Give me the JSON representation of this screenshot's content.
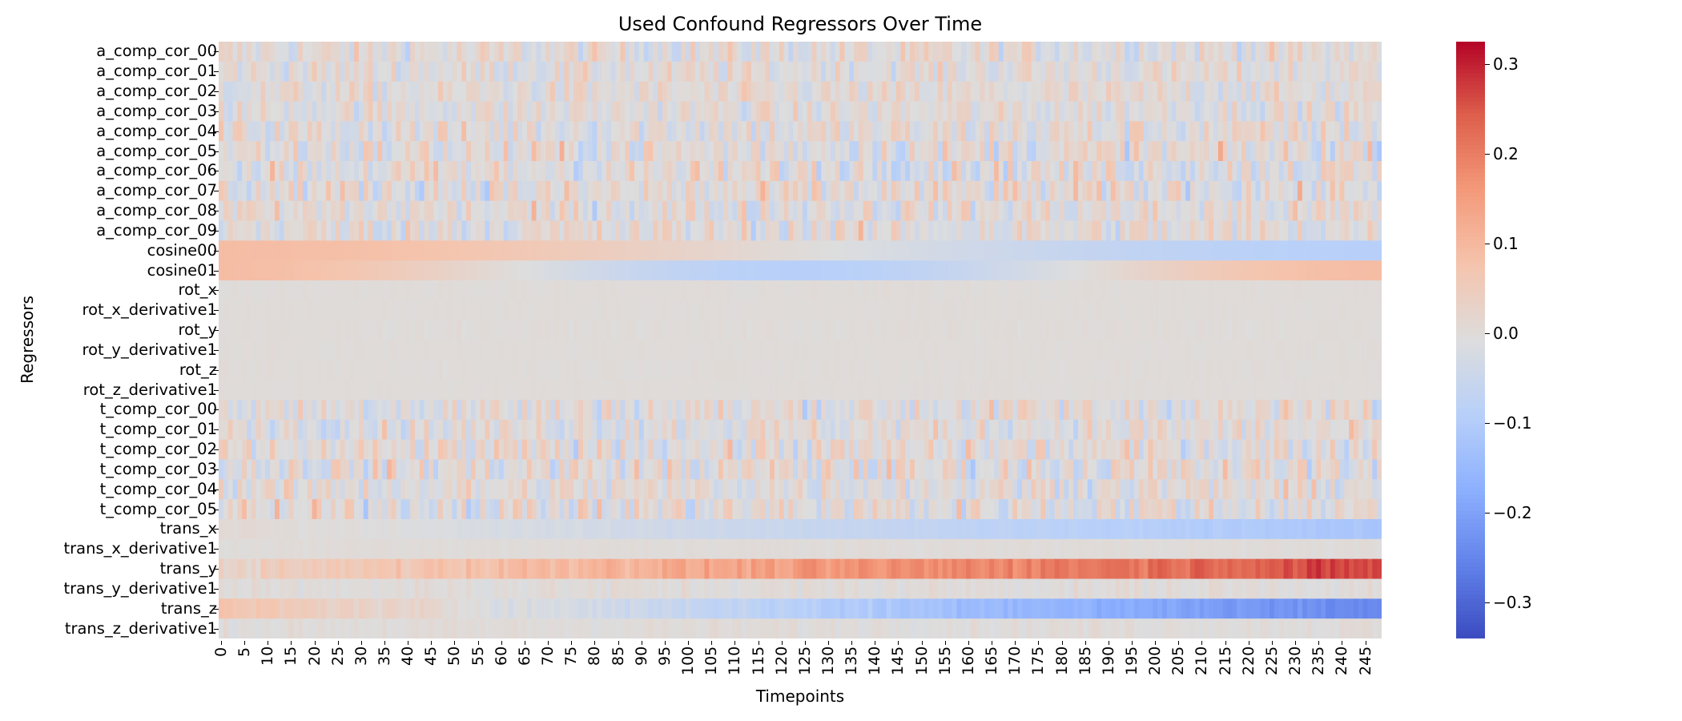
{
  "chart_data": {
    "type": "heatmap",
    "title": "Used Confound Regressors Over Time",
    "xlabel": "Timepoints",
    "ylabel": "Regressors",
    "n_timepoints": 249,
    "x_tick_step": 5,
    "x_ticks": [
      "0",
      "5",
      "10",
      "15",
      "20",
      "25",
      "30",
      "35",
      "40",
      "45",
      "50",
      "55",
      "60",
      "65",
      "70",
      "75",
      "80",
      "85",
      "90",
      "95",
      "100",
      "105",
      "110",
      "115",
      "120",
      "125",
      "130",
      "135",
      "140",
      "145",
      "150",
      "155",
      "160",
      "165",
      "170",
      "175",
      "180",
      "185",
      "190",
      "195",
      "200",
      "205",
      "210",
      "215",
      "220",
      "225",
      "230",
      "235",
      "240",
      "245"
    ],
    "regressors": [
      "a_comp_cor_00",
      "a_comp_cor_01",
      "a_comp_cor_02",
      "a_comp_cor_03",
      "a_comp_cor_04",
      "a_comp_cor_05",
      "a_comp_cor_06",
      "a_comp_cor_07",
      "a_comp_cor_08",
      "a_comp_cor_09",
      "cosine00",
      "cosine01",
      "rot_x",
      "rot_x_derivative1",
      "rot_y",
      "rot_y_derivative1",
      "rot_z",
      "rot_z_derivative1",
      "t_comp_cor_00",
      "t_comp_cor_01",
      "t_comp_cor_02",
      "t_comp_cor_03",
      "t_comp_cor_04",
      "t_comp_cor_05",
      "trans_x",
      "trans_x_derivative1",
      "trans_y",
      "trans_y_derivative1",
      "trans_z",
      "trans_z_derivative1"
    ],
    "row_profiles": [
      {
        "kind": "noise",
        "amplitude": 0.07
      },
      {
        "kind": "noise",
        "amplitude": 0.06
      },
      {
        "kind": "noise",
        "amplitude": 0.06
      },
      {
        "kind": "noise",
        "amplitude": 0.06
      },
      {
        "kind": "noise",
        "amplitude": 0.08
      },
      {
        "kind": "noise",
        "amplitude": 0.09
      },
      {
        "kind": "noise",
        "amplitude": 0.09
      },
      {
        "kind": "noise",
        "amplitude": 0.09
      },
      {
        "kind": "noise",
        "amplitude": 0.08
      },
      {
        "kind": "noise",
        "amplitude": 0.08
      },
      {
        "kind": "cosine",
        "amplitude": 0.09,
        "harmonic": 1
      },
      {
        "kind": "cosine",
        "amplitude": 0.09,
        "harmonic": 2
      },
      {
        "kind": "flat",
        "amplitude": 0.004
      },
      {
        "kind": "flat",
        "amplitude": 0.003
      },
      {
        "kind": "flat",
        "amplitude": 0.006
      },
      {
        "kind": "flat",
        "amplitude": 0.003
      },
      {
        "kind": "flat",
        "amplitude": 0.005
      },
      {
        "kind": "flat",
        "amplitude": 0.003
      },
      {
        "kind": "noise",
        "amplitude": 0.08
      },
      {
        "kind": "noise",
        "amplitude": 0.07
      },
      {
        "kind": "noise",
        "amplitude": 0.08
      },
      {
        "kind": "noise",
        "amplitude": 0.09
      },
      {
        "kind": "noise",
        "amplitude": 0.07
      },
      {
        "kind": "noise",
        "amplitude": 0.09
      },
      {
        "kind": "trend",
        "amplitude": 0.008,
        "start": 0.01,
        "end": -0.12
      },
      {
        "kind": "flat",
        "amplitude": 0.006
      },
      {
        "kind": "trend",
        "amplitude": 0.03,
        "start": 0.03,
        "end": 0.27
      },
      {
        "kind": "flat",
        "amplitude": 0.02
      },
      {
        "kind": "trend",
        "amplitude": 0.02,
        "start": 0.07,
        "end": -0.25
      },
      {
        "kind": "flat",
        "amplitude": 0.015
      }
    ],
    "colorbar": {
      "colormap": "coolwarm",
      "vmin": -0.34,
      "vmax": 0.325,
      "ticks": [
        0.3,
        0.2,
        0.1,
        0.0,
        -0.1,
        -0.2,
        -0.3
      ],
      "tick_labels": [
        "0.3",
        "0.2",
        "0.1",
        "0.0",
        "−0.1",
        "−0.2",
        "−0.3"
      ]
    }
  }
}
